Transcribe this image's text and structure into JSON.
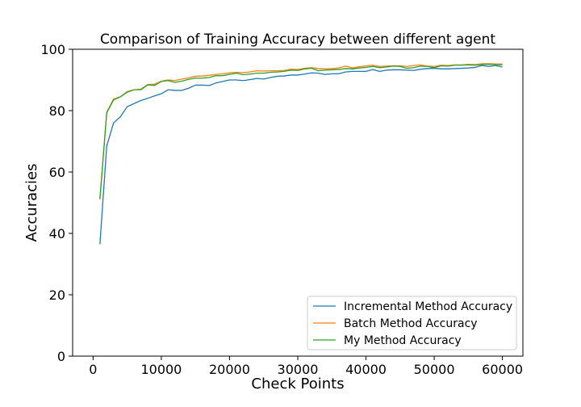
{
  "chart_data": {
    "type": "line",
    "title": "Comparison of Training Accuracy between different agent",
    "xlabel": "Check Points",
    "ylabel": "Accuracies",
    "xlim": [
      -3000,
      63000
    ],
    "ylim": [
      0,
      100
    ],
    "xticks": [
      0,
      10000,
      20000,
      30000,
      40000,
      50000,
      60000
    ],
    "yticks": [
      0,
      20,
      40,
      60,
      80,
      100
    ],
    "grid": false,
    "legend_position": "lower-right",
    "x": [
      1000,
      2000,
      3000,
      4000,
      5000,
      6000,
      7000,
      8000,
      9000,
      10000,
      11000,
      12000,
      13000,
      14000,
      15000,
      16000,
      17000,
      18000,
      19000,
      20000,
      21000,
      22000,
      23000,
      24000,
      25000,
      26000,
      27000,
      28000,
      29000,
      30000,
      31000,
      32000,
      33000,
      34000,
      35000,
      36000,
      37000,
      38000,
      39000,
      40000,
      41000,
      42000,
      43000,
      44000,
      45000,
      46000,
      47000,
      48000,
      49000,
      50000,
      51000,
      52000,
      53000,
      54000,
      55000,
      56000,
      57000,
      58000,
      59000,
      60000
    ],
    "series": [
      {
        "name": "Incremental Method Accuracy",
        "color": "#1f77b4",
        "values": [
          36.5,
          68.5,
          76.0,
          78.0,
          81.3,
          82.3,
          83.3,
          84.0,
          84.8,
          85.5,
          86.8,
          86.6,
          86.6,
          87.3,
          88.3,
          88.3,
          88.2,
          89.0,
          89.5,
          90.0,
          90.0,
          89.8,
          90.1,
          90.5,
          90.3,
          90.8,
          91.2,
          91.3,
          91.6,
          91.6,
          91.9,
          92.3,
          92.2,
          91.8,
          92.0,
          92.0,
          92.6,
          92.8,
          92.8,
          92.8,
          93.4,
          92.8,
          93.2,
          93.3,
          93.3,
          93.2,
          93.1,
          93.5,
          93.7,
          93.8,
          93.6,
          93.6,
          93.7,
          93.8,
          93.9,
          94.1,
          94.7,
          94.4,
          94.7,
          94.2
        ]
      },
      {
        "name": "Batch Method Accuracy",
        "color": "#ff7f0e",
        "values": [
          51.0,
          79.5,
          83.8,
          84.5,
          86.2,
          86.8,
          87.0,
          88.5,
          88.6,
          89.6,
          90.0,
          89.8,
          90.3,
          90.7,
          91.2,
          91.3,
          91.5,
          91.8,
          92.0,
          92.3,
          92.5,
          92.4,
          92.6,
          93.0,
          92.9,
          93.0,
          93.0,
          93.1,
          93.5,
          93.4,
          93.8,
          94.0,
          93.7,
          93.6,
          93.7,
          93.9,
          94.5,
          93.9,
          94.3,
          94.6,
          94.8,
          94.4,
          94.5,
          94.6,
          94.6,
          94.4,
          94.7,
          94.9,
          94.5,
          94.4,
          94.8,
          94.7,
          94.9,
          94.9,
          95.1,
          95.0,
          95.3,
          95.3,
          95.2,
          95.2
        ]
      },
      {
        "name": "My Method Accuracy",
        "color": "#2ca02c",
        "values": [
          51.3,
          79.3,
          83.5,
          84.5,
          86.0,
          86.8,
          86.8,
          88.4,
          88.2,
          89.5,
          89.8,
          89.2,
          89.6,
          90.2,
          90.6,
          90.6,
          90.8,
          91.4,
          91.4,
          91.8,
          92.2,
          91.7,
          91.9,
          92.2,
          92.2,
          92.5,
          92.6,
          92.8,
          93.2,
          93.1,
          93.6,
          93.8,
          93.0,
          93.2,
          93.3,
          93.4,
          93.7,
          93.6,
          93.9,
          94.1,
          94.4,
          94.0,
          94.2,
          94.5,
          94.4,
          93.8,
          94.0,
          94.5,
          94.4,
          94.0,
          94.6,
          94.5,
          94.8,
          94.8,
          94.9,
          94.8,
          95.0,
          95.1,
          95.0,
          94.9
        ]
      }
    ]
  }
}
